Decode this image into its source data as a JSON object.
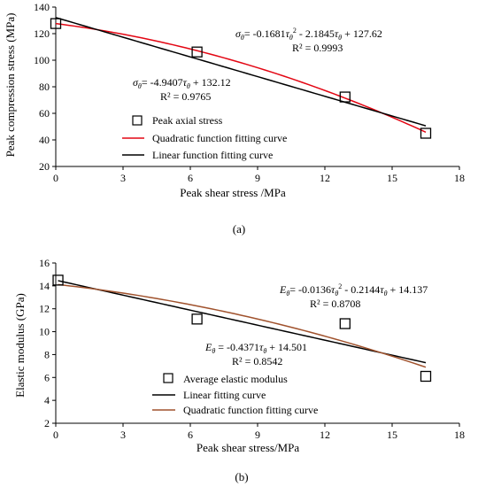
{
  "chart_data": [
    {
      "type": "scatter",
      "xlabel": "Peak shear stress /MPa",
      "ylabel": "Peak compression stress (MPa)",
      "xlim": [
        0,
        18
      ],
      "ylim": [
        20,
        140
      ],
      "xticks": [
        "0",
        "3",
        "6",
        "9",
        "12",
        "15",
        "18"
      ],
      "yticks": [
        "20",
        "40",
        "60",
        "80",
        "100",
        "120",
        "140"
      ],
      "caption": "(a)",
      "grid": false,
      "legend_position": "center",
      "points": {
        "name": "Peak axial stress",
        "x": [
          0,
          6.3,
          12.9,
          16.5
        ],
        "y": [
          127.6,
          106.2,
          72.3,
          45.0
        ]
      },
      "fits": [
        {
          "name": "Quadratic function fitting curve",
          "kind": "quadratic",
          "a": -0.1681,
          "b": -2.1845,
          "c": 127.62,
          "color": "#e30613"
        },
        {
          "name": "Linear function fitting curve",
          "kind": "linear",
          "m": -4.9407,
          "c": 132.12,
          "color": "#000000"
        }
      ],
      "annotations": {
        "quad_eq": "σθ= -0.1681τθ² - 2.1845τθ + 127.62",
        "quad_r2": "R² = 0.9993",
        "lin_eq": "σθ= -4.9407τθ + 132.12",
        "lin_r2": "R² = 0.9765"
      }
    },
    {
      "type": "scatter",
      "xlabel": "Peak shear stress/MPa",
      "ylabel": "Elastic modulus (GPa)",
      "xlim": [
        0,
        18
      ],
      "ylim": [
        2,
        16
      ],
      "xticks": [
        "0",
        "3",
        "6",
        "9",
        "12",
        "15",
        "18"
      ],
      "yticks": [
        "2",
        "4",
        "6",
        "8",
        "10",
        "12",
        "14",
        "16"
      ],
      "caption": "(b)",
      "grid": false,
      "legend_position": "bottom-center",
      "points": {
        "name": "Average elastic modulus",
        "x": [
          0.1,
          6.3,
          12.9,
          16.5
        ],
        "y": [
          14.5,
          11.1,
          10.7,
          6.1
        ]
      },
      "fits": [
        {
          "name": "Linear fitting curve",
          "kind": "linear",
          "m": -0.4371,
          "c": 14.501,
          "color": "#000000"
        },
        {
          "name": "Quadratic function fitting curve",
          "kind": "quadratic",
          "a": -0.0136,
          "b": -0.2144,
          "c": 14.137,
          "color": "#a0522d"
        }
      ],
      "annotations": {
        "quad_eq": "Eθ= -0.0136τθ² - 0.2144τθ + 14.137",
        "quad_r2": "R² = 0.8708",
        "lin_eq": "Eθ = -0.4371τθ + 14.501",
        "lin_r2": "R² = 0.8542"
      }
    }
  ]
}
